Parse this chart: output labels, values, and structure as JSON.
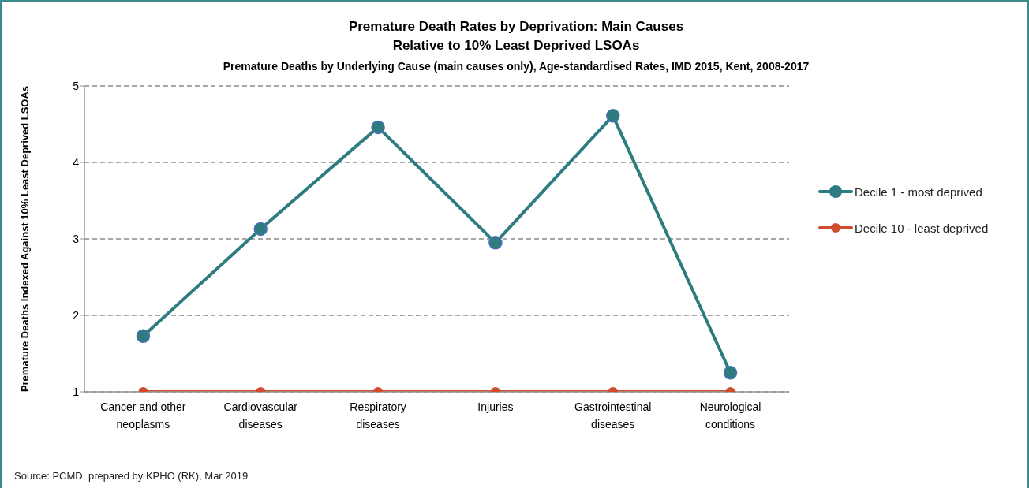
{
  "chart_data": {
    "type": "line",
    "title": "Premature Death Rates by Deprivation: Main Causes\nRelative to 10% Least Deprived LSOAs",
    "subtitle": "Premature Deaths by Underlying Cause (main causes only), Age-standardised Rates, IMD 2015, Kent, 2008-2017",
    "ylabel": "Premature Deaths Indexed Against 10% Least Deprived LSOAs",
    "categories": [
      "Cancer and other neoplasms",
      "Cardiovascular diseases",
      "Respiratory diseases",
      "Injuries",
      "Gastrointestinal diseases",
      "Neurological conditions"
    ],
    "series": [
      {
        "name": "Decile 1 - most deprived",
        "color": "#2e7c80",
        "values": [
          1.73,
          3.13,
          4.46,
          2.95,
          4.61,
          1.25
        ]
      },
      {
        "name": "Decile 10 - least deprived",
        "color": "#d14b2d",
        "values": [
          1,
          1,
          1,
          1,
          1,
          1
        ]
      }
    ],
    "ylim": [
      1,
      5
    ],
    "yticks": [
      1,
      2,
      3,
      4,
      5
    ],
    "grid": "y",
    "legend": "right",
    "marker": "circle",
    "annotations": [
      "Source: PCMD, prepared by KPHO (RK), Mar 2019"
    ]
  }
}
